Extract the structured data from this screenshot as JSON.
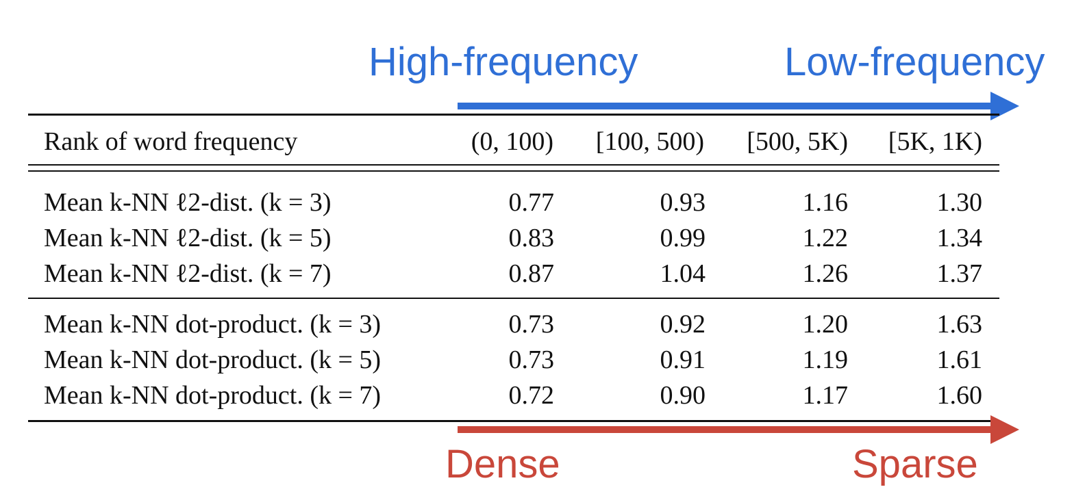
{
  "annotations": {
    "top_left": "High-frequency",
    "top_right": "Low-frequency",
    "bottom_left": "Dense",
    "bottom_right": "Sparse",
    "top_arrow_color": "#2f6fd6",
    "bottom_arrow_color": "#c9473a"
  },
  "table": {
    "header": {
      "label": "Rank of word frequency",
      "columns": [
        "(0, 100)",
        "[100, 500)",
        "[500, 5K)",
        "[5K, 1K)"
      ]
    },
    "group1": [
      {
        "label": "Mean k-NN ℓ2-dist. (k = 3)",
        "values": [
          "0.77",
          "0.93",
          "1.16",
          "1.30"
        ]
      },
      {
        "label": "Mean k-NN ℓ2-dist. (k = 5)",
        "values": [
          "0.83",
          "0.99",
          "1.22",
          "1.34"
        ]
      },
      {
        "label": "Mean k-NN ℓ2-dist. (k = 7)",
        "values": [
          "0.87",
          "1.04",
          "1.26",
          "1.37"
        ]
      }
    ],
    "group2": [
      {
        "label": "Mean k-NN dot-product. (k = 3)",
        "values": [
          "0.73",
          "0.92",
          "1.20",
          "1.63"
        ]
      },
      {
        "label": "Mean k-NN dot-product. (k = 5)",
        "values": [
          "0.73",
          "0.91",
          "1.19",
          "1.61"
        ]
      },
      {
        "label": "Mean k-NN dot-product. (k = 7)",
        "values": [
          "0.72",
          "0.90",
          "1.17",
          "1.60"
        ]
      }
    ]
  }
}
